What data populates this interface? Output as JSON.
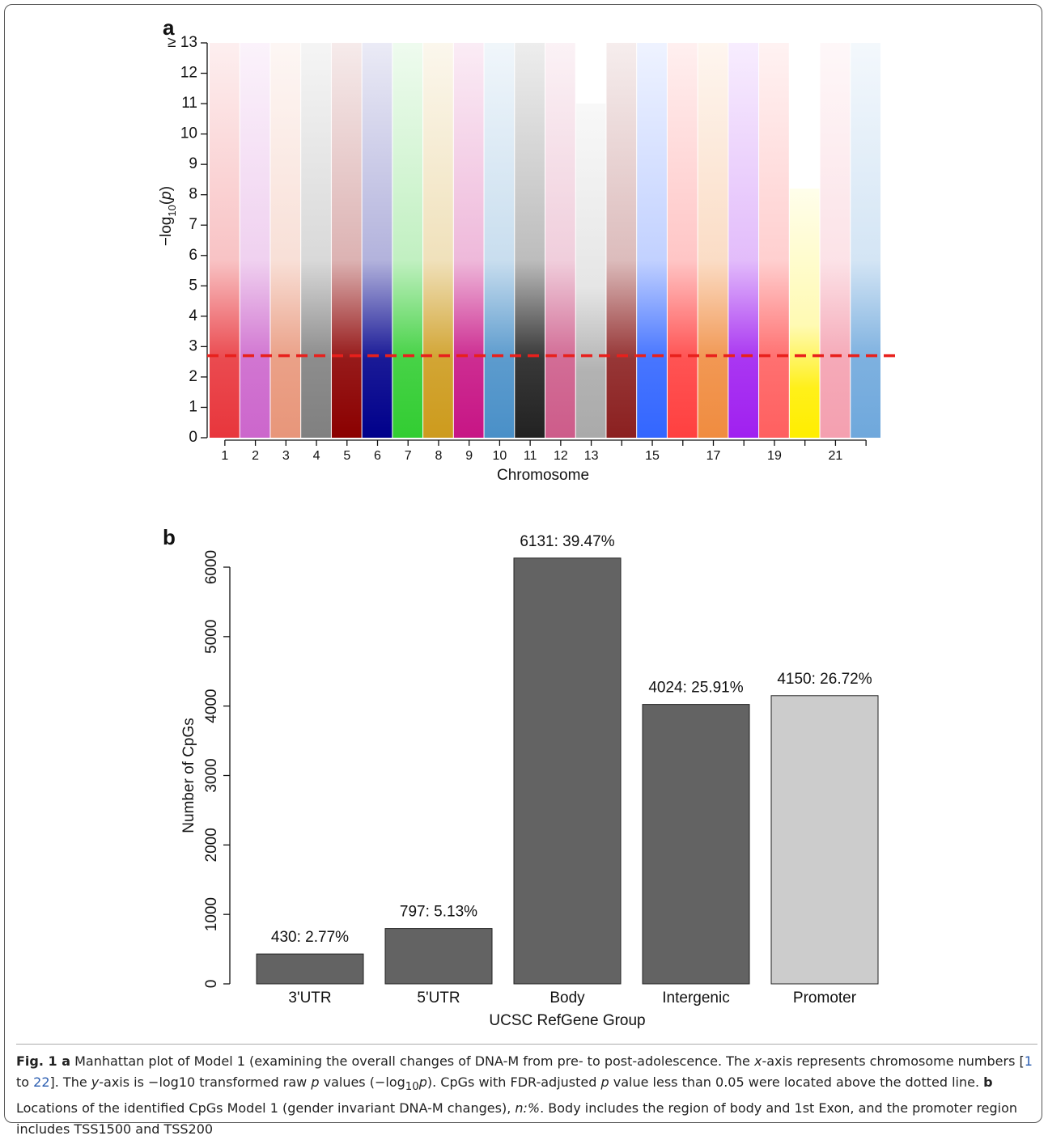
{
  "chart_data": [
    {
      "type": "manhattan",
      "panel": "a",
      "xlabel": "Chromosome",
      "ylabel": [
        "−log",
        "10",
        "(",
        "p",
        ")"
      ],
      "categories": [
        "1",
        "2",
        "3",
        "4",
        "5",
        "6",
        "7",
        "8",
        "9",
        "10",
        "11",
        "12",
        "13",
        null,
        "15",
        null,
        "17",
        null,
        "19",
        null,
        "21",
        null
      ],
      "values": [
        13,
        13,
        13,
        13,
        13,
        13,
        13,
        13,
        13,
        13,
        13,
        13,
        11,
        13,
        13,
        13,
        13,
        13,
        13,
        8.2,
        13,
        13
      ],
      "colors": [
        "#e8363c",
        "#cc66cc",
        "#e8967a",
        "#808080",
        "#8b0000",
        "#00008b",
        "#32cd32",
        "#cd9b1d",
        "#c71585",
        "#4a90c8",
        "#222222",
        "#cd5c8a",
        "#aaaaaa",
        "#8b2020",
        "#3366ff",
        "#ff4040",
        "#f08c40",
        "#a020f0",
        "#ff6060",
        "#ffee00",
        "#f4a0b0",
        "#6fa8dc"
      ],
      "threshold": 2.7,
      "threshold_color": "#e8201c",
      "ylim": [
        0,
        13
      ],
      "yticks": [
        0,
        1,
        2,
        3,
        4,
        5,
        6,
        7,
        8,
        9,
        10,
        11,
        12,
        {
          "value": 13,
          "label": "≥ 13"
        }
      ]
    },
    {
      "type": "bar",
      "panel": "b",
      "xlabel": "UCSC RefGene Group",
      "ylabel": "Number of CpGs",
      "categories": [
        "3'UTR",
        "5'UTR",
        "Body",
        "Intergenic",
        "Promoter"
      ],
      "values": [
        430,
        797,
        6131,
        4024,
        4150
      ],
      "value_labels": [
        "430: 2.77%",
        "797: 5.13%",
        "6131: 39.47%",
        "4024: 25.91%",
        "4150: 26.72%"
      ],
      "colors": [
        "#636363",
        "#636363",
        "#636363",
        "#636363",
        "#cccccc"
      ],
      "ylim": [
        0,
        6000
      ],
      "yticks": [
        0,
        1000,
        2000,
        3000,
        4000,
        5000,
        6000
      ]
    }
  ],
  "caption": [
    "Fig. 1 a",
    " Manhattan plot of Model 1 (examining the overall changes of DNA-M from pre- to post-adolescence. The ",
    "x",
    "-axis represents chromosome numbers [",
    "1",
    " to ",
    "22",
    "]. The ",
    "y",
    "-axis is −log10 transformed raw ",
    "p",
    " values (−log",
    "10",
    "p",
    "). CpGs with FDR-adjusted ",
    "p",
    " value less than 0.05 were located above the dotted line. ",
    "b",
    " Locations of the identified CpGs Model 1 (gender invariant DNA-M changes), ",
    "n:%",
    ". Body includes the region of body and 1st Exon, and the promoter region includes TSS1500 and TSS200"
  ]
}
